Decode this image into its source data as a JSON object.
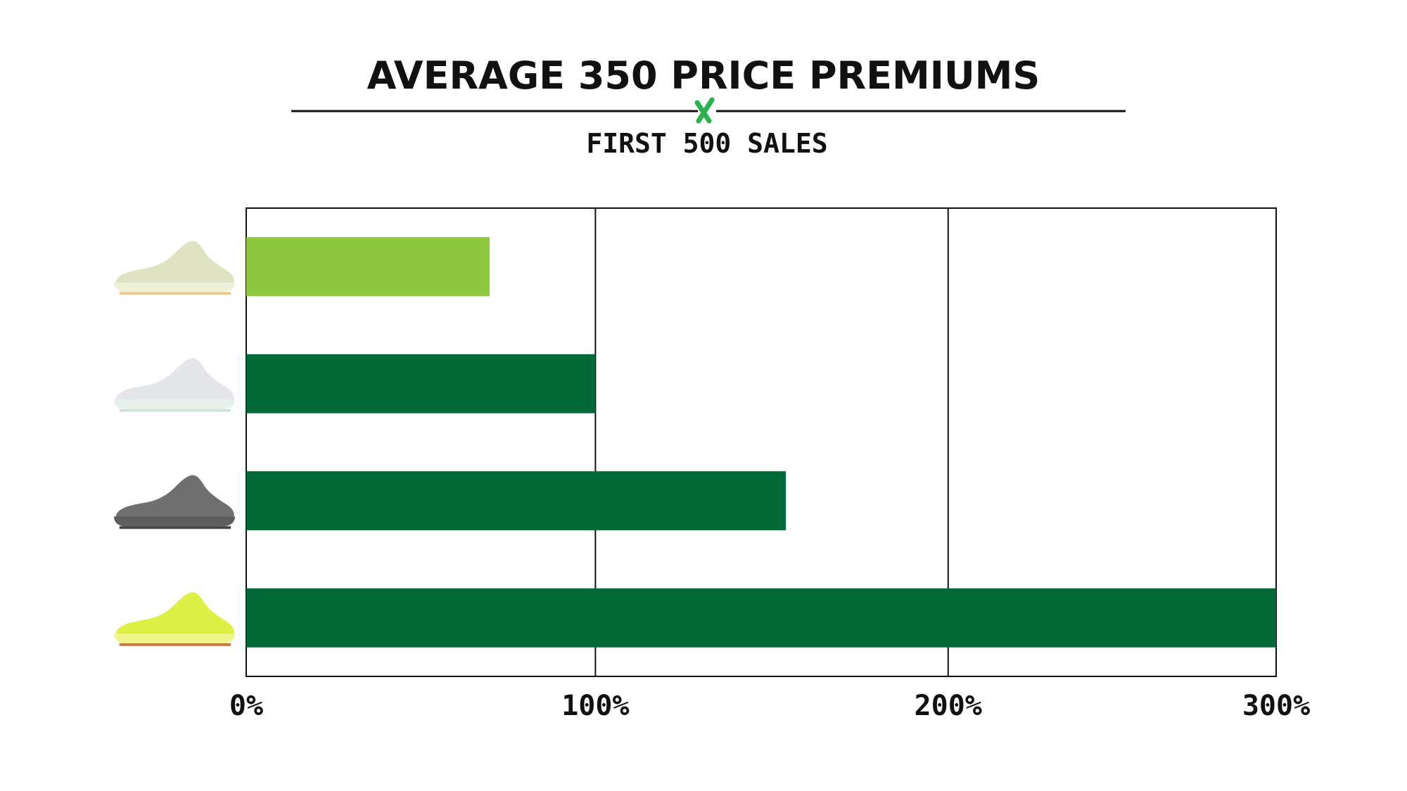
{
  "colors": {
    "dark_green": "#036837",
    "light_green": "#8dc63f",
    "logo_green": "#2bb24c",
    "ink": "#111111"
  },
  "header": {
    "title": "AVERAGE 350 PRICE PREMIUMS",
    "subtitle": "FIRST 500 SALES",
    "logo_icon": "stockx-x-logo-icon"
  },
  "chart_data": {
    "type": "bar",
    "orientation": "horizontal",
    "categories": [
      "sneaker-butter-icon",
      "sneaker-blue-tint-icon",
      "sneaker-beluga-icon",
      "sneaker-semi-frozen-yellow-icon"
    ],
    "values": [
      69,
      99,
      153,
      292
    ],
    "bar_colors": [
      "#8dc63f",
      "#036837",
      "#036837",
      "#036837"
    ],
    "xticks": [
      "0%",
      "100%",
      "200%",
      "300%"
    ],
    "xlim": [
      0,
      292
    ],
    "tick_values": [
      0,
      99,
      199,
      292
    ],
    "grid": "vertical"
  }
}
